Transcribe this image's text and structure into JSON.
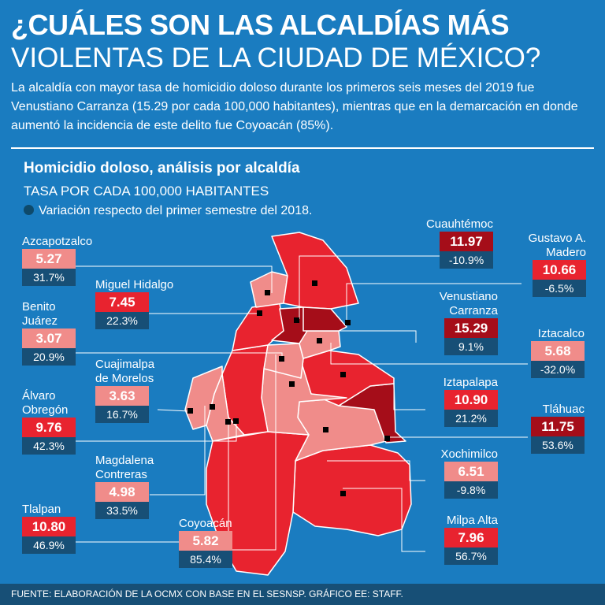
{
  "header": {
    "title_line1": "¿CUÁLES SON LAS ALCALDÍAS MÁS",
    "title_line2": "VIOLENTAS DE LA CIUDAD DE MÉXICO?",
    "intro": "La alcaldía con mayor tasa de homicidio doloso durante los primeros seis meses del 2019 fue Venustiano Carranza (15.29 por cada 100,000 habitantes), mientras que en la demarcación en donde aumentó la incidencia de este delito fue Coyoacán (85%)."
  },
  "chart_data": {
    "type": "table",
    "title": "Homicidio doloso, análisis por alcaldía",
    "subtitle": "TASA POR CADA 100,000 HABITANTES",
    "legend": "Variación respecto del primer semestre del 2018.",
    "rows": [
      {
        "name": "Azcapotzalco",
        "rate": "5.27",
        "change": "31.7%",
        "color": "#f08c8a"
      },
      {
        "name": "Miguel Hidalgo",
        "rate": "7.45",
        "change": "22.3%",
        "color": "#e8232f"
      },
      {
        "name": "Benito Juárez",
        "rate": "3.07",
        "change": "20.9%",
        "color": "#f08c8a"
      },
      {
        "name": "Cuajimalpa de Morelos",
        "rate": "3.63",
        "change": "16.7%",
        "color": "#f08c8a"
      },
      {
        "name": "Álvaro Obregón",
        "rate": "9.76",
        "change": "42.3%",
        "color": "#e8232f"
      },
      {
        "name": "Magdalena Contreras",
        "rate": "4.98",
        "change": "33.5%",
        "color": "#f08c8a"
      },
      {
        "name": "Tlalpan",
        "rate": "10.80",
        "change": "46.9%",
        "color": "#e8232f"
      },
      {
        "name": "Coyoacán",
        "rate": "5.82",
        "change": "85.4%",
        "color": "#f08c8a"
      },
      {
        "name": "Cuauhtémoc",
        "rate": "11.97",
        "change": "-10.9%",
        "color": "#a50d19"
      },
      {
        "name": "Gustavo A. Madero",
        "rate": "10.66",
        "change": "-6.5%",
        "color": "#e8232f"
      },
      {
        "name": "Venustiano Carranza",
        "rate": "15.29",
        "change": "9.1%",
        "color": "#a50d19"
      },
      {
        "name": "Iztacalco",
        "rate": "5.68",
        "change": "-32.0%",
        "color": "#f08c8a"
      },
      {
        "name": "Iztapalapa",
        "rate": "10.90",
        "change": "21.2%",
        "color": "#e8232f"
      },
      {
        "name": "Tláhuac",
        "rate": "11.75",
        "change": "53.6%",
        "color": "#a50d19"
      },
      {
        "name": "Xochimilco",
        "rate": "6.51",
        "change": "-9.8%",
        "color": "#f08c8a"
      },
      {
        "name": "Milpa Alta",
        "rate": "7.96",
        "change": "56.7%",
        "color": "#e8232f"
      }
    ]
  },
  "labels": {
    "azc": {
      "l1": "Azcapotzalco"
    },
    "mh": {
      "l1": "Miguel Hidalgo"
    },
    "bj": {
      "l1": "Benito",
      "l2": "Juárez"
    },
    "cuaj": {
      "l1": "Cuajimalpa",
      "l2": "de Morelos"
    },
    "ao": {
      "l1": "Álvaro",
      "l2": "Obregón"
    },
    "mc": {
      "l1": "Magdalena",
      "l2": "Contreras"
    },
    "tlp": {
      "l1": "Tlalpan"
    },
    "coy": {
      "l1": "Coyoacán"
    },
    "cuau": {
      "l1": "Cuauhtémoc"
    },
    "gam": {
      "l1": "Gustavo A.",
      "l2": "Madero"
    },
    "vc": {
      "l1": "Venustiano",
      "l2": "Carranza"
    },
    "izc": {
      "l1": "Iztacalco"
    },
    "izp": {
      "l1": "Iztapalapa"
    },
    "tlh": {
      "l1": "Tláhuac"
    },
    "xoc": {
      "l1": "Xochimilco"
    },
    "ma": {
      "l1": "Milpa Alta"
    }
  },
  "colors": {
    "background": "#1a7cc0",
    "light": "#f08c8a",
    "medium": "#e8232f",
    "dark": "#a50d19",
    "variation_box": "#174f76"
  },
  "footer": "FUENTE: ELABORACIÓN DE LA OCMX CON BASE EN EL SESNSP. GRÁFICO EE: STAFF."
}
